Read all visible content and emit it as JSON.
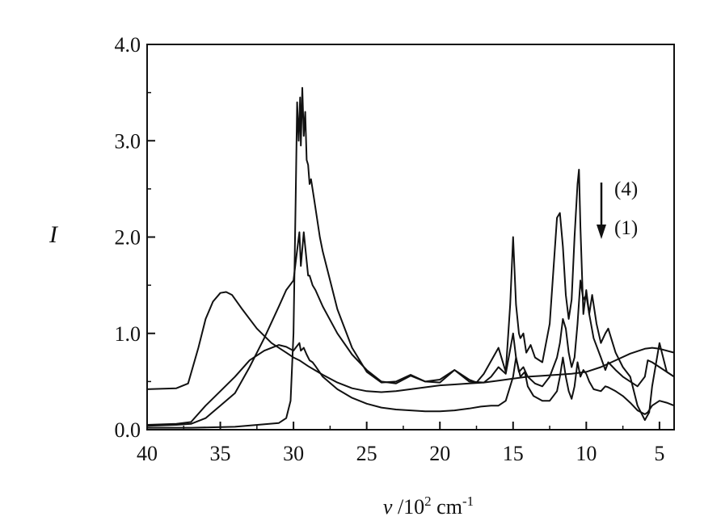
{
  "chart_data": {
    "type": "line",
    "xlabel": "ν /10² cm⁻¹",
    "xlabel_parts": {
      "symbol": "ν",
      "mid": " /10",
      "sup1": "2",
      "unit": " cm",
      "sup2": "-1"
    },
    "ylabel": "I",
    "xlim": [
      40,
      4
    ],
    "ylim": [
      0.0,
      4.0
    ],
    "x_reversed": true,
    "grid": false,
    "x_ticks": [
      {
        "value": 40,
        "label": "40"
      },
      {
        "value": 35,
        "label": "35"
      },
      {
        "value": 30,
        "label": "30"
      },
      {
        "value": 25,
        "label": "25"
      },
      {
        "value": 20,
        "label": "20"
      },
      {
        "value": 15,
        "label": "15"
      },
      {
        "value": 10,
        "label": "10"
      },
      {
        "value": 5,
        "label": "5"
      }
    ],
    "y_ticks": [
      {
        "value": 0.0,
        "label": "0.0"
      },
      {
        "value": 1.0,
        "label": "1.0"
      },
      {
        "value": 2.0,
        "label": "2.0"
      },
      {
        "value": 3.0,
        "label": "3.0"
      },
      {
        "value": 4.0,
        "label": "4.0"
      }
    ],
    "annotations": {
      "top_label": "(4)",
      "bottom_label": "(1)",
      "arrow": "down"
    },
    "series": [
      {
        "x": [
          40,
          38,
          37.2,
          36.5,
          36,
          35.5,
          35,
          34.6,
          34.2,
          33.5,
          32.5,
          31.5,
          30.5,
          30,
          29.6,
          29,
          28,
          27,
          26,
          25,
          24,
          23,
          22,
          21,
          20,
          19,
          18,
          17,
          16,
          15,
          14,
          13,
          12,
          11,
          10,
          9,
          8,
          7,
          6,
          5.5,
          5,
          4
        ],
        "y": [
          0.42,
          0.43,
          0.48,
          0.85,
          1.15,
          1.33,
          1.42,
          1.43,
          1.4,
          1.25,
          1.05,
          0.9,
          0.8,
          0.75,
          0.72,
          0.66,
          0.57,
          0.49,
          0.43,
          0.4,
          0.39,
          0.4,
          0.42,
          0.44,
          0.46,
          0.47,
          0.48,
          0.49,
          0.51,
          0.53,
          0.55,
          0.56,
          0.57,
          0.58,
          0.6,
          0.65,
          0.72,
          0.79,
          0.84,
          0.85,
          0.84,
          0.8
        ]
      },
      {
        "x": [
          40,
          38,
          37,
          36,
          35,
          34,
          33,
          32,
          31,
          30.5,
          30,
          29.8,
          29.6,
          29.5,
          29.3,
          29.1,
          28.9,
          28.7,
          28.5,
          28,
          27,
          26,
          25,
          24,
          23,
          22,
          21,
          20,
          19,
          18,
          17.2,
          16.5,
          16,
          15.5,
          15,
          14.8,
          14.5,
          14.2,
          14,
          13.6,
          13,
          12.5,
          12,
          11.8,
          11.6,
          11.4,
          11.2,
          11,
          10.8,
          10.6,
          10.4,
          10.2,
          10,
          9.8,
          9.5,
          9,
          8.7,
          8.5,
          8,
          7.5,
          7,
          6.5,
          6,
          5.8,
          5.5,
          5,
          4.5,
          4
        ],
        "y": [
          0.05,
          0.06,
          0.08,
          0.25,
          0.4,
          0.55,
          0.72,
          0.82,
          0.88,
          0.86,
          0.82,
          0.86,
          0.9,
          0.82,
          0.85,
          0.78,
          0.72,
          0.7,
          0.66,
          0.55,
          0.42,
          0.33,
          0.27,
          0.23,
          0.21,
          0.2,
          0.19,
          0.19,
          0.2,
          0.22,
          0.24,
          0.25,
          0.25,
          0.3,
          0.55,
          0.75,
          0.55,
          0.6,
          0.45,
          0.35,
          0.3,
          0.3,
          0.4,
          0.55,
          0.75,
          0.55,
          0.4,
          0.32,
          0.45,
          0.7,
          0.55,
          0.62,
          0.58,
          0.5,
          0.42,
          0.4,
          0.45,
          0.44,
          0.4,
          0.35,
          0.28,
          0.2,
          0.16,
          0.18,
          0.25,
          0.3,
          0.28,
          0.25
        ]
      },
      {
        "x": [
          40,
          38,
          37,
          36,
          35,
          34,
          33,
          32,
          31,
          30.5,
          30,
          29.8,
          29.6,
          29.5,
          29.3,
          29.1,
          29,
          28.9,
          28.7,
          28.5,
          28,
          27,
          26,
          25,
          24,
          23,
          22,
          21,
          20,
          19,
          18,
          17,
          16.5,
          16,
          15.5,
          15,
          14.8,
          14.6,
          14.3,
          14,
          13.5,
          13,
          12.5,
          12,
          11.8,
          11.6,
          11.4,
          11.2,
          11,
          10.8,
          10.6,
          10.4,
          10.2,
          10,
          9.8,
          9.5,
          9,
          8.7,
          8.5,
          8,
          7.5,
          7,
          6.5,
          6,
          5.8,
          5.5,
          5,
          4.5,
          4
        ],
        "y": [
          0.04,
          0.05,
          0.06,
          0.12,
          0.25,
          0.38,
          0.65,
          0.95,
          1.28,
          1.45,
          1.55,
          1.8,
          2.05,
          1.7,
          2.05,
          1.75,
          1.6,
          1.6,
          1.5,
          1.45,
          1.28,
          1.0,
          0.78,
          0.62,
          0.5,
          0.48,
          0.56,
          0.5,
          0.52,
          0.62,
          0.5,
          0.49,
          0.55,
          0.65,
          0.58,
          1.0,
          0.75,
          0.6,
          0.65,
          0.55,
          0.48,
          0.45,
          0.55,
          0.75,
          0.9,
          1.15,
          1.05,
          0.8,
          0.65,
          0.75,
          1.1,
          1.55,
          1.35,
          1.4,
          1.2,
          0.95,
          0.75,
          0.62,
          0.7,
          0.62,
          0.55,
          0.5,
          0.45,
          0.55,
          0.72,
          0.7,
          0.65,
          0.6,
          0.55
        ]
      },
      {
        "x": [
          40,
          37,
          34,
          31,
          30.5,
          30.2,
          30,
          29.85,
          29.75,
          29.65,
          29.55,
          29.5,
          29.4,
          29.3,
          29.2,
          29.1,
          29,
          28.9,
          28.8,
          28.6,
          28.4,
          28.2,
          28,
          27.5,
          27,
          26,
          25,
          24,
          23,
          22,
          21,
          20,
          19,
          18,
          17.5,
          17,
          16,
          15.5,
          15.2,
          15,
          14.8,
          14.6,
          14.5,
          14.3,
          14.1,
          13.8,
          13.5,
          13,
          12.5,
          12,
          11.8,
          11.6,
          11.4,
          11.2,
          11,
          10.8,
          10.6,
          10.5,
          10.4,
          10.2,
          10,
          9.8,
          9.6,
          9.3,
          9,
          8.7,
          8.5,
          8.3,
          8,
          7.5,
          7,
          6.5,
          6,
          5.7,
          5.5,
          5,
          4.5,
          4
        ],
        "y": [
          0.02,
          0.02,
          0.03,
          0.07,
          0.12,
          0.3,
          1.0,
          2.4,
          3.4,
          3.0,
          3.45,
          2.95,
          3.55,
          3.05,
          3.3,
          2.8,
          2.75,
          2.55,
          2.6,
          2.4,
          2.2,
          2.0,
          1.85,
          1.55,
          1.25,
          0.85,
          0.6,
          0.49,
          0.5,
          0.57,
          0.5,
          0.49,
          0.62,
          0.52,
          0.49,
          0.58,
          0.85,
          0.6,
          1.3,
          2.0,
          1.3,
          1.0,
          0.95,
          1.0,
          0.8,
          0.88,
          0.75,
          0.7,
          1.1,
          2.2,
          2.25,
          1.9,
          1.4,
          1.15,
          1.35,
          2.0,
          2.55,
          2.7,
          2.1,
          1.2,
          1.45,
          1.2,
          1.4,
          1.1,
          0.9,
          1.0,
          1.05,
          0.95,
          0.8,
          0.65,
          0.55,
          0.25,
          0.1,
          0.18,
          0.45,
          0.9,
          0.6,
          0.55
        ]
      }
    ]
  }
}
